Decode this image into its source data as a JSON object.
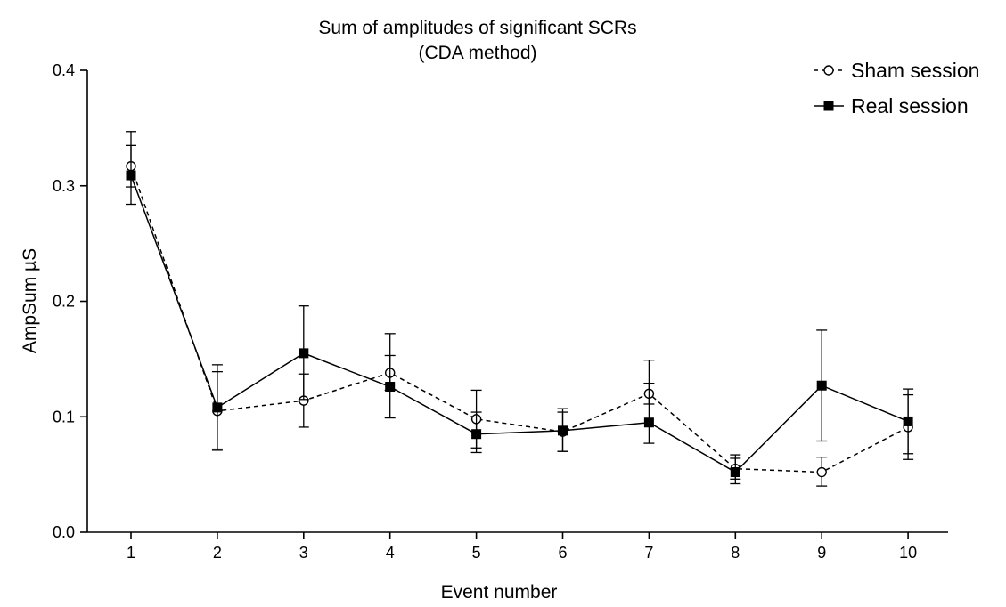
{
  "chart_data": {
    "type": "line",
    "title": [
      "Sum of amplitudes of significant SCRs",
      "(CDA method)"
    ],
    "xlabel": "Event number",
    "ylabel": "AmpSum µS",
    "x": [
      1,
      2,
      3,
      4,
      5,
      6,
      7,
      8,
      9,
      10
    ],
    "xticks": [
      "1",
      "2",
      "3",
      "4",
      "5",
      "6",
      "7",
      "8",
      "9",
      "10"
    ],
    "yticks": [
      "0.0",
      "0.1",
      "0.2",
      "0.3",
      "0.4"
    ],
    "ylim": [
      0,
      0.4
    ],
    "grid": false,
    "legend_position": "top-right",
    "series": [
      {
        "name": "Sham session",
        "marker": "open-circle",
        "line_style": "dashed",
        "color": "#000000",
        "values": [
          0.317,
          0.105,
          0.114,
          0.138,
          0.098,
          0.087,
          0.12,
          0.055,
          0.052,
          0.091
        ],
        "err_upper": [
          0.335,
          0.139,
          0.137,
          0.153,
          0.123,
          0.104,
          0.129,
          0.064,
          0.065,
          0.119
        ],
        "err_lower": [
          0.299,
          0.071,
          0.091,
          0.123,
          0.073,
          0.07,
          0.111,
          0.046,
          0.04,
          0.063
        ]
      },
      {
        "name": "Real session",
        "marker": "filled-square",
        "line_style": "solid",
        "color": "#000000",
        "values": [
          0.309,
          0.108,
          0.155,
          0.126,
          0.085,
          0.088,
          0.095,
          0.052,
          0.127,
          0.096
        ],
        "err_upper": [
          0.347,
          0.145,
          0.196,
          0.172,
          0.104,
          0.107,
          0.149,
          0.067,
          0.175,
          0.124
        ],
        "err_lower": [
          0.284,
          0.072,
          0.115,
          0.099,
          0.069,
          0.07,
          0.077,
          0.042,
          0.079,
          0.068
        ]
      }
    ]
  }
}
